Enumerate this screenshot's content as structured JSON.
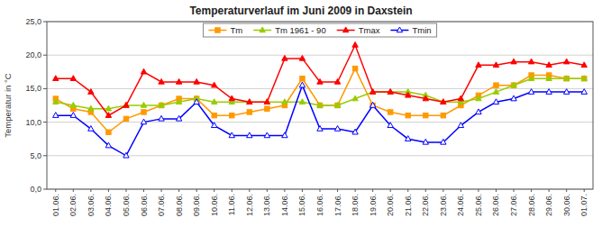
{
  "chart_data": {
    "type": "line",
    "title": "Temperaturverlauf im Juni 2009 in Daxstein",
    "y_label": "Temperatur in °C",
    "categories": [
      "01.06.",
      "02.06.",
      "03.06.",
      "04.06.",
      "05.06.",
      "06.06.",
      "07.06.",
      "08.06.",
      "09.06.",
      "10.06.",
      "11.06.",
      "12.06.",
      "13.06.",
      "14.06.",
      "15.06.",
      "16.06.",
      "17.06.",
      "18.06.",
      "19.06.",
      "20.06.",
      "21.06.",
      "22.06.",
      "23.06.",
      "24.06.",
      "25.06.",
      "26.06.",
      "27.06.",
      "28.06.",
      "29.06.",
      "30.06.",
      "01.07."
    ],
    "series": [
      {
        "name": "Tm",
        "color": "#ff9900",
        "marker": "square",
        "values": [
          13.5,
          12.0,
          11.5,
          8.5,
          10.5,
          11.5,
          12.5,
          13.5,
          13.5,
          11.0,
          11.0,
          11.5,
          12.0,
          12.5,
          16.5,
          12.5,
          12.5,
          18.0,
          12.5,
          11.5,
          11.0,
          11.0,
          11.0,
          12.5,
          14.0,
          15.5,
          15.5,
          17.0,
          17.0,
          16.5,
          16.5
        ]
      },
      {
        "name": "Tm 1961 - 90",
        "color": "#99cc00",
        "marker": "triangle",
        "values": [
          13.0,
          12.5,
          12.0,
          12.0,
          12.5,
          12.5,
          12.5,
          13.0,
          13.5,
          13.0,
          13.0,
          13.0,
          13.0,
          13.0,
          13.0,
          12.5,
          12.5,
          13.5,
          14.5,
          14.5,
          14.5,
          14.0,
          13.0,
          13.0,
          13.5,
          14.5,
          15.5,
          16.5,
          16.5,
          16.5,
          16.5
        ]
      },
      {
        "name": "Tmax",
        "color": "#ff0000",
        "marker": "triangle",
        "values": [
          16.5,
          16.5,
          14.5,
          11.0,
          12.5,
          17.5,
          16.0,
          16.0,
          16.0,
          15.5,
          13.5,
          13.0,
          13.0,
          19.5,
          19.5,
          16.0,
          16.0,
          21.5,
          14.5,
          14.5,
          14.0,
          13.5,
          13.0,
          13.5,
          18.5,
          18.5,
          19.0,
          19.0,
          18.5,
          19.0,
          18.5
        ]
      },
      {
        "name": "Tmin",
        "color": "#0000ff",
        "marker": "triangle-open",
        "values": [
          11.0,
          11.0,
          9.0,
          6.5,
          5.0,
          10.0,
          10.5,
          10.5,
          13.0,
          9.5,
          8.0,
          8.0,
          8.0,
          8.0,
          15.5,
          9.0,
          9.0,
          8.5,
          12.5,
          9.5,
          7.5,
          7.0,
          7.0,
          9.5,
          11.5,
          13.0,
          13.5,
          14.5,
          14.5,
          14.5,
          14.5
        ]
      }
    ],
    "ylim": [
      0.0,
      25.0
    ],
    "yticks": [
      {
        "value": 0.0,
        "label": "0,0"
      },
      {
        "value": 5.0,
        "label": "5,0"
      },
      {
        "value": 10.0,
        "label": "10,0"
      },
      {
        "value": 15.0,
        "label": "15,0"
      },
      {
        "value": 20.0,
        "label": "20,0"
      },
      {
        "value": 25.0,
        "label": "25,0"
      }
    ],
    "grid": true,
    "legend": "top"
  }
}
